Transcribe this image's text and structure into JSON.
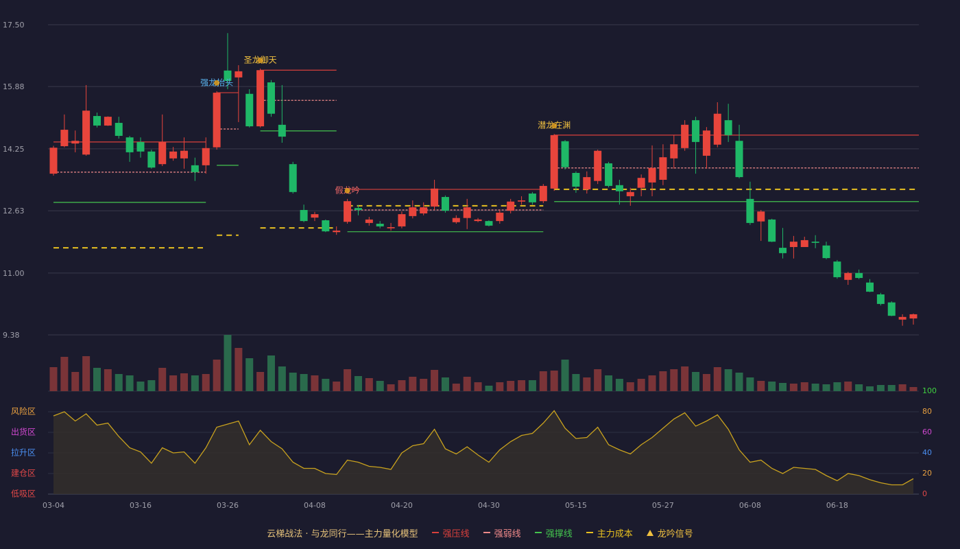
{
  "chart_data": {
    "type": "candlestick",
    "categories": [
      "03-04",
      null,
      null,
      null,
      null,
      null,
      null,
      null,
      "03-16",
      null,
      null,
      null,
      null,
      null,
      null,
      null,
      "03-26",
      null,
      null,
      null,
      null,
      null,
      null,
      null,
      "04-08",
      null,
      null,
      null,
      null,
      null,
      null,
      null,
      "04-20",
      null,
      null,
      null,
      null,
      null,
      null,
      null,
      "04-30",
      null,
      null,
      null,
      null,
      null,
      null,
      null,
      "05-15",
      null,
      null,
      null,
      null,
      null,
      null,
      null,
      "05-27",
      null,
      null,
      null,
      null,
      null,
      null,
      null,
      "06-08",
      null,
      null,
      null,
      null,
      null,
      null,
      null,
      "06-18",
      null,
      null,
      null,
      null,
      null,
      null,
      null
    ],
    "open": [
      13.6,
      14.32,
      14.39,
      14.1,
      15.11,
      14.86,
      14.93,
      14.55,
      14.43,
      14.18,
      13.85,
      14.0,
      14.0,
      13.82,
      13.82,
      14.29,
      16.3,
      16.12,
      15.69,
      14.84,
      15.99,
      14.88,
      13.85,
      12.65,
      12.45,
      12.38,
      12.07,
      12.34,
      12.7,
      12.31,
      12.29,
      12.17,
      12.22,
      12.49,
      12.56,
      12.74,
      12.99,
      12.33,
      12.44,
      12.36,
      12.36,
      12.36,
      12.63,
      12.87,
      13.08,
      12.88,
      13.21,
      14.45,
      13.62,
      13.19,
      13.41,
      13.87,
      13.3,
      13.01,
      13.23,
      13.37,
      13.44,
      14.0,
      14.27,
      15.0,
      14.07,
      14.36,
      15.0,
      14.46,
      12.94,
      12.35,
      12.4,
      11.66,
      11.68,
      11.68,
      11.82,
      11.72,
      11.3,
      10.82,
      11.0,
      10.75,
      10.44,
      10.23,
      9.78,
      9.81
    ],
    "high": [
      14.33,
      15.15,
      14.73,
      15.92,
      15.2,
      15.1,
      15.09,
      14.59,
      14.55,
      14.23,
      15.15,
      14.3,
      14.55,
      14.02,
      14.55,
      15.76,
      17.28,
      16.44,
      15.81,
      16.35,
      16.05,
      15.92,
      13.91,
      12.79,
      12.6,
      12.4,
      12.22,
      12.94,
      12.78,
      12.47,
      12.36,
      12.31,
      12.61,
      12.9,
      12.85,
      13.44,
      13.03,
      12.51,
      12.94,
      12.44,
      12.38,
      12.65,
      12.94,
      13.01,
      13.12,
      13.33,
      14.64,
      14.48,
      13.66,
      13.66,
      14.23,
      13.91,
      13.44,
      13.23,
      13.58,
      14.34,
      14.37,
      14.61,
      15.0,
      15.09,
      14.82,
      15.47,
      15.43,
      14.88,
      13.39,
      12.65,
      12.42,
      12.18,
      11.97,
      11.95,
      11.99,
      11.82,
      11.34,
      11.03,
      11.09,
      10.84,
      10.48,
      10.26,
      9.92,
      9.94
    ],
    "low": [
      13.55,
      14.29,
      14.16,
      14.07,
      14.81,
      14.85,
      14.52,
      13.91,
      14.02,
      13.73,
      13.8,
      13.94,
      13.73,
      13.41,
      13.6,
      14.23,
      15.81,
      14.95,
      14.81,
      14.81,
      15.09,
      14.41,
      13.08,
      12.33,
      12.36,
      12.07,
      12.0,
      12.29,
      12.51,
      12.24,
      12.17,
      12.11,
      12.17,
      12.43,
      12.51,
      12.65,
      12.58,
      12.29,
      12.15,
      12.33,
      12.22,
      12.29,
      12.56,
      12.79,
      12.79,
      12.83,
      13.15,
      13.71,
      13.1,
      13.08,
      13.33,
      13.24,
      12.79,
      12.76,
      13.01,
      13.01,
      13.3,
      13.73,
      14.2,
      13.6,
      13.73,
      14.29,
      14.43,
      13.48,
      12.26,
      11.84,
      11.81,
      11.38,
      11.38,
      11.68,
      11.65,
      11.36,
      10.85,
      10.69,
      10.84,
      10.5,
      10.15,
      9.87,
      9.62,
      9.65
    ],
    "close": [
      14.28,
      14.75,
      14.46,
      15.25,
      14.86,
      15.09,
      14.59,
      14.16,
      14.18,
      13.76,
      14.43,
      14.18,
      14.2,
      13.64,
      14.27,
      15.72,
      16.03,
      16.28,
      14.84,
      16.31,
      15.17,
      14.57,
      13.12,
      12.36,
      12.54,
      12.09,
      12.11,
      12.88,
      12.65,
      12.4,
      12.22,
      12.2,
      12.54,
      12.72,
      12.72,
      13.21,
      12.63,
      12.44,
      12.72,
      12.4,
      12.24,
      12.58,
      12.87,
      12.9,
      12.85,
      13.28,
      14.61,
      13.77,
      13.26,
      13.51,
      14.2,
      13.28,
      13.14,
      13.12,
      13.49,
      13.75,
      14.03,
      14.37,
      14.88,
      14.43,
      14.73,
      15.17,
      14.61,
      13.51,
      12.31,
      12.61,
      11.82,
      11.52,
      11.82,
      11.86,
      11.79,
      11.39,
      10.89,
      11.0,
      10.87,
      10.51,
      10.19,
      9.88,
      9.85,
      9.92
    ],
    "up_color": "#e8453c",
    "down_color": "#1fb867",
    "ylim": [
      9.38,
      17.5
    ],
    "yticks": [
      9.38,
      {
        "value": 11.0,
        "label": "11.00"
      },
      12.63,
      14.25,
      15.88,
      {
        "value": 17.5,
        "label": "17.50"
      }
    ],
    "grid": true,
    "level_lines": [
      {
        "name": "强压线",
        "color": "#d9403c",
        "dash": false,
        "segments": [
          {
            "from": 0,
            "to": 14,
            "value": 14.43
          },
          {
            "from": 15,
            "to": 17,
            "value": 15.72
          },
          {
            "from": 19,
            "to": 26,
            "value": 16.31
          },
          {
            "from": 27,
            "to": 45,
            "value": 13.19
          },
          {
            "from": 46,
            "to": 79,
            "value": 14.61
          }
        ]
      },
      {
        "name": "强弱线",
        "color": "#f08a8a",
        "dash": true,
        "segments": [
          {
            "from": 0,
            "to": 14,
            "value": 13.64
          },
          {
            "from": 15,
            "to": 17,
            "value": 14.77
          },
          {
            "from": 19,
            "to": 26,
            "value": 15.52
          },
          {
            "from": 27,
            "to": 45,
            "value": 12.65
          },
          {
            "from": 46,
            "to": 79,
            "value": 13.75
          }
        ]
      },
      {
        "name": "强撑线",
        "color": "#44c44e",
        "dash": false,
        "segments": [
          {
            "from": 0,
            "to": 14,
            "value": 12.85
          },
          {
            "from": 15,
            "to": 17,
            "value": 13.82
          },
          {
            "from": 19,
            "to": 26,
            "value": 14.72
          },
          {
            "from": 27,
            "to": 45,
            "value": 12.08
          },
          {
            "from": 46,
            "to": 79,
            "value": 12.87
          }
        ]
      },
      {
        "name": "主力成本",
        "color": "#e8c020",
        "dash": true,
        "segments": [
          {
            "from": 0,
            "to": 14,
            "value": 11.66
          },
          {
            "from": 15,
            "to": 17,
            "value": 11.99
          },
          {
            "from": 19,
            "to": 26,
            "value": 12.18
          },
          {
            "from": 27,
            "to": 45,
            "value": 12.76
          },
          {
            "from": 46,
            "to": 79,
            "value": 13.19
          }
        ]
      }
    ],
    "signal": {
      "name": "龙吟信号",
      "color": "#f0c040",
      "marker_color": "#e0a020"
    },
    "annotations": [
      {
        "text": "强龙抬头",
        "index": 15,
        "color": "#5ab4f0"
      },
      {
        "text": "圣龙御天",
        "index": 19,
        "color": "#f0c040"
      },
      {
        "text": "假龙吟",
        "index": 27,
        "color": "#f06868"
      },
      {
        "text": "潜龙在渊",
        "index": 46,
        "color": "#f0c040"
      }
    ],
    "legend_title": "云梯战法 · 与龙同行——主力量化模型",
    "legend_title_color": "#e6c27a",
    "volume": {
      "values": [
        35,
        50,
        28,
        51,
        34,
        32,
        25,
        23,
        14,
        16,
        34,
        23,
        26,
        23,
        25,
        46,
        82,
        63,
        48,
        28,
        52,
        36,
        27,
        25,
        23,
        18,
        14,
        32,
        22,
        19,
        15,
        10,
        16,
        21,
        18,
        31,
        20,
        11,
        21,
        13,
        8,
        13,
        15,
        16,
        16,
        29,
        30,
        46,
        25,
        20,
        32,
        23,
        18,
        13,
        18,
        23,
        29,
        32,
        36,
        28,
        25,
        35,
        32,
        27,
        20,
        15,
        14,
        12,
        11,
        13,
        11,
        10,
        13,
        14,
        10,
        7,
        9,
        9,
        10,
        6
      ],
      "ylim": [
        0,
        82
      ],
      "up_color": "#7a3438",
      "down_color": "#2a6a4c"
    },
    "indicator": {
      "values": [
        76,
        80,
        71,
        78,
        67,
        69,
        56,
        45,
        41,
        30,
        45,
        40,
        41,
        30,
        45,
        65,
        68,
        71,
        48,
        62,
        51,
        44,
        31,
        25,
        25,
        20,
        19,
        33,
        31,
        27,
        26,
        24,
        40,
        47,
        49,
        63,
        44,
        39,
        46,
        38,
        31,
        43,
        51,
        57,
        59,
        69,
        81,
        64,
        54,
        55,
        65,
        48,
        43,
        39,
        48,
        55,
        64,
        73,
        79,
        66,
        71,
        77,
        63,
        43,
        31,
        33,
        25,
        20,
        26,
        25,
        24,
        18,
        13,
        20,
        18,
        14,
        11,
        9,
        9,
        15
      ],
      "ylim": [
        0,
        100
      ],
      "yticks": [
        0,
        20,
        40,
        60,
        80,
        100
      ],
      "ytick_colors": [
        "#e04848",
        "#e8a040",
        "#4a8ef0",
        "#d048d0",
        "#e8a040",
        "#40d040"
      ],
      "zones": [
        {
          "label": "风险区",
          "value": 80,
          "color": "#e8a040"
        },
        {
          "label": "出货区",
          "value": 60,
          "color": "#d048d0"
        },
        {
          "label": "拉升区",
          "value": 40,
          "color": "#4a8ef0"
        },
        {
          "label": "建仓区",
          "value": 20,
          "color": "#e04848"
        },
        {
          "label": "低吸区",
          "value": 0,
          "color": "#e04848"
        }
      ],
      "line_color": "#c9a21e",
      "fill_color": "#35302a"
    }
  }
}
